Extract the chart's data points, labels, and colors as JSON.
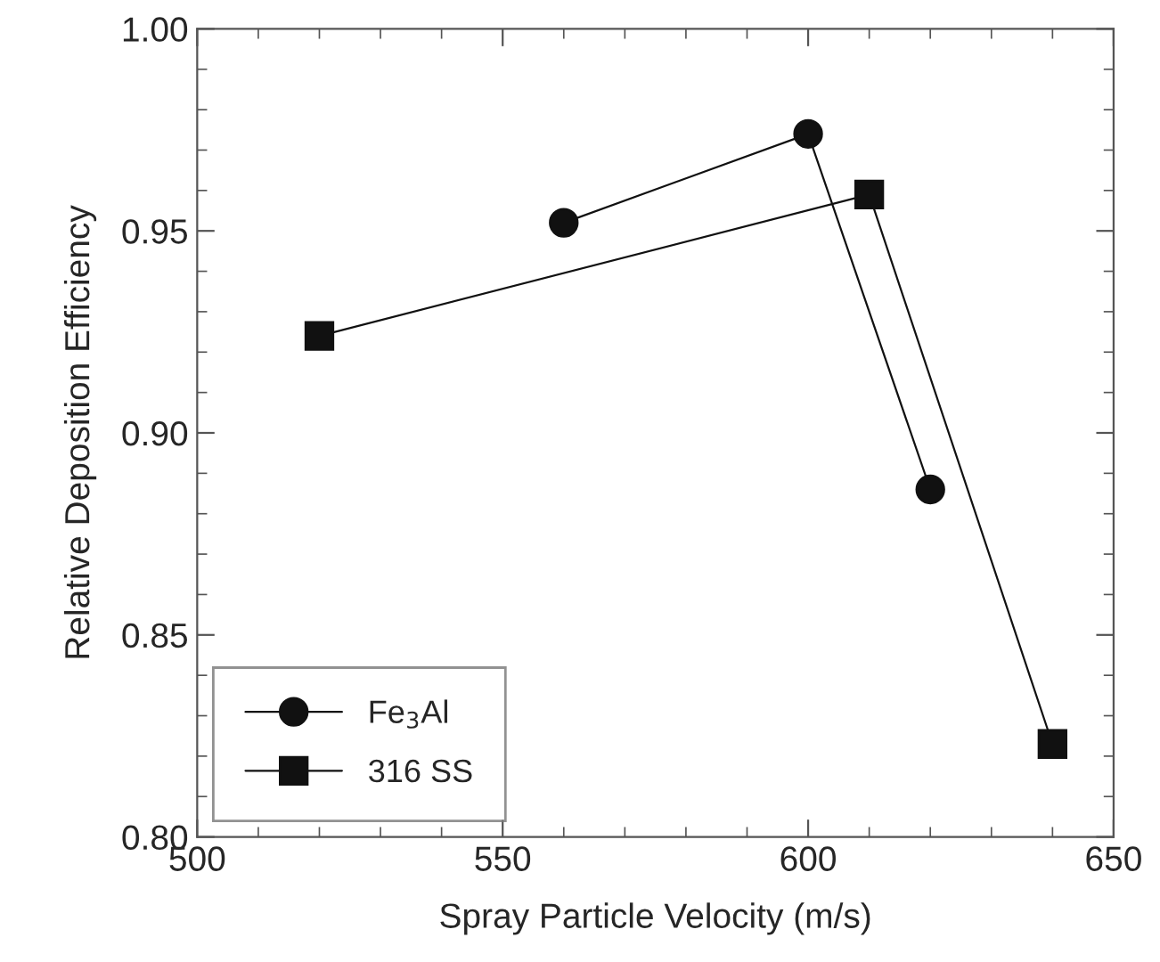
{
  "chart_data": {
    "type": "line",
    "xlabel": "Spray Particle Velocity (m/s)",
    "ylabel": "Relative Deposition Efficiency",
    "xlim": [
      500,
      650
    ],
    "xticks": [
      500,
      550,
      600,
      650
    ],
    "ylim": [
      0.8,
      1.0
    ],
    "yticks": [
      {
        "value": 0.8,
        "label": "0.80"
      },
      {
        "value": 0.85,
        "label": "0.85"
      },
      {
        "value": 0.9,
        "label": "0.90"
      },
      {
        "value": 0.95,
        "label": "0.95"
      },
      {
        "value": 1.0,
        "label": "1.00"
      }
    ],
    "grid": false,
    "legend": "bottom left",
    "line_style": "solid",
    "series": [
      {
        "name": "Fe$_{3}$Al",
        "color": "#111111",
        "marker": "circle",
        "x": [
          560,
          600,
          620
        ],
        "values": [
          0.952,
          0.974,
          0.886
        ]
      },
      {
        "name": "316 SS",
        "color": "#111111",
        "marker": "square",
        "x": [
          520,
          610,
          640
        ],
        "values": [
          0.924,
          0.959,
          0.823
        ]
      }
    ]
  }
}
